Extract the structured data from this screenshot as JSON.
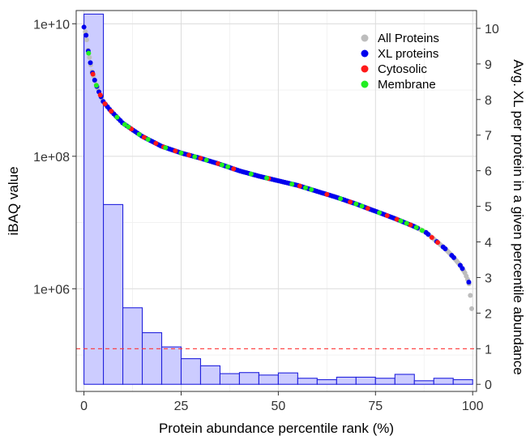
{
  "chart_data": {
    "type": "bar+scatter",
    "xlabel": "Protein abundance percentile rank (%)",
    "ylabel_left": "iBAQ value",
    "ylabel_right": "Avg. XL per protein in a given percentile abundance",
    "xlim": [
      -2,
      101
    ],
    "xticks": [
      0,
      25,
      50,
      75,
      100
    ],
    "ylim_left_log10": [
      4.45,
      10.2
    ],
    "yticks_left": [
      {
        "value": 1000000,
        "label": "1e+06"
      },
      {
        "value": 100000000,
        "label": "1e+08"
      },
      {
        "value": 10000000000,
        "label": "1e+10"
      }
    ],
    "ylim_right": [
      -0.2,
      10.5
    ],
    "yticks_right": [
      0,
      1,
      2,
      3,
      4,
      5,
      6,
      7,
      8,
      9,
      10
    ],
    "grid": true,
    "legend_position": "top-right",
    "legend": [
      {
        "label": "All Proteins",
        "color": "#bdbdbd"
      },
      {
        "label": "XL proteins",
        "color": "#0000ee"
      },
      {
        "label": "Cytosolic",
        "color": "#ff1a1a"
      },
      {
        "label": "Membrane",
        "color": "#22ee22"
      }
    ],
    "reference_line": {
      "axis": "right",
      "value": 1,
      "color": "#ff3333",
      "style": "dashed"
    },
    "histogram": {
      "bin_width": 5,
      "bin_starts": [
        0,
        5,
        10,
        15,
        20,
        25,
        30,
        35,
        40,
        45,
        50,
        55,
        60,
        65,
        70,
        75,
        80,
        85,
        90,
        95
      ],
      "values": [
        10.4,
        5.05,
        2.15,
        1.45,
        1.05,
        0.72,
        0.52,
        0.3,
        0.33,
        0.26,
        0.32,
        0.17,
        0.13,
        0.2,
        0.2,
        0.17,
        0.28,
        0.1,
        0.17,
        0.13
      ],
      "fill": "#ccccff",
      "stroke": "#2222dd"
    },
    "abundance_curve": {
      "x": [
        0,
        0.5,
        1,
        2,
        3,
        4,
        5,
        7,
        10,
        15,
        20,
        25,
        30,
        35,
        40,
        45,
        50,
        55,
        60,
        65,
        70,
        75,
        80,
        85,
        88,
        90,
        93,
        95,
        97,
        98,
        99,
        99.5,
        100
      ],
      "iBAQ_log10": [
        9.95,
        9.85,
        9.62,
        9.3,
        9.1,
        8.95,
        8.82,
        8.68,
        8.5,
        8.3,
        8.15,
        8.05,
        7.97,
        7.88,
        7.78,
        7.7,
        7.63,
        7.56,
        7.47,
        7.38,
        7.28,
        7.17,
        7.06,
        6.94,
        6.85,
        6.75,
        6.6,
        6.48,
        6.34,
        6.24,
        6.1,
        5.85,
        5.55
      ]
    },
    "membrane_x": [
      1.2,
      3.2,
      8.5,
      10.5,
      11.4,
      14.2,
      16.5,
      21,
      25,
      28.5,
      31.5,
      35.5,
      37,
      43,
      47,
      53.5,
      57,
      58.5,
      66,
      70,
      71.5,
      76,
      81.5,
      83,
      85.5,
      87
    ],
    "cytosolic_x": [
      2.3,
      4.2,
      5.4,
      7,
      12.2,
      15.5,
      18.5,
      20.5,
      23.5,
      27,
      30,
      34.5,
      38.5,
      47.5,
      55.5,
      62.5,
      68.5,
      73,
      78,
      80.5,
      84,
      89.5,
      91
    ]
  }
}
